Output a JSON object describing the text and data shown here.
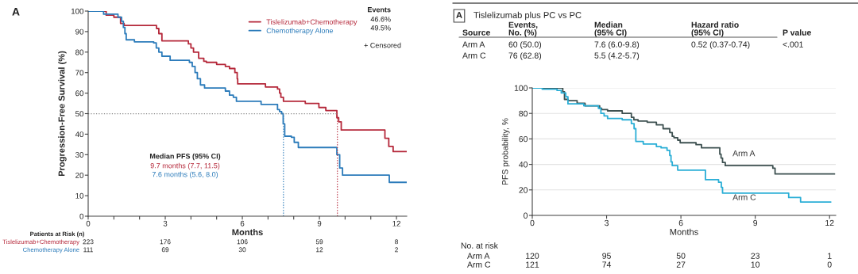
{
  "chart_data": [
    {
      "type": "step",
      "xlabel": "Months",
      "ylabel": "Progression-Free Survival (%)",
      "xlim": [
        0,
        12.4
      ],
      "ylim": [
        0,
        100
      ],
      "xticks": [
        0,
        {
          "value": 1,
          "label": null
        },
        {
          "value": 2,
          "label": null
        },
        3,
        {
          "value": 4,
          "label": null
        },
        {
          "value": 5,
          "label": null
        },
        6,
        {
          "value": 7,
          "label": null
        },
        {
          "value": 8,
          "label": null
        },
        9,
        {
          "value": 10,
          "label": null
        },
        {
          "value": 11,
          "label": null
        },
        12
      ],
      "yticks": [
        0,
        10,
        20,
        30,
        40,
        50,
        60,
        70,
        80,
        90,
        100
      ],
      "legend": "top right",
      "line_style": "solid",
      "series": [
        {
          "name": "Tislelizumab+Chemotherapy",
          "color": "#b5283a",
          "x": [
            0,
            0.7,
            1.0,
            1.26,
            1.4,
            2.66,
            2.75,
            2.87,
            3.9,
            4.0,
            4.1,
            4.3,
            4.5,
            4.6,
            5.0,
            5.34,
            5.5,
            5.71,
            5.8,
            5.82,
            6.9,
            7.37,
            7.45,
            7.5,
            7.6,
            8.45,
            8.98,
            9.25,
            9.68,
            9.75,
            9.85,
            11.55,
            11.7,
            11.87,
            12.4
          ],
          "values": [
            100,
            98,
            97,
            94,
            93,
            91.5,
            89,
            85.5,
            84,
            82,
            80,
            77,
            75.5,
            75,
            74,
            73,
            72,
            70,
            67,
            64.5,
            63,
            62,
            60,
            58,
            56,
            55,
            53,
            51.5,
            48,
            46,
            42,
            38,
            34,
            31.5,
            31.5
          ]
        },
        {
          "name": "Chemotherapy Alone",
          "color": "#2b7bba",
          "x": [
            0,
            0.6,
            1.16,
            1.3,
            1.37,
            1.43,
            1.48,
            1.8,
            2.55,
            2.65,
            2.75,
            2.87,
            3.19,
            3.94,
            4.05,
            4.16,
            4.25,
            4.37,
            4.53,
            5.34,
            5.5,
            5.65,
            5.77,
            6.73,
            7.37,
            7.45,
            7.53,
            7.59,
            7.65,
            7.91,
            8.02,
            8.18,
            9.68,
            9.79,
            9.9,
            11.72,
            12.4
          ],
          "values": [
            100,
            98.5,
            97,
            95,
            92,
            89,
            86,
            85,
            84.5,
            82,
            80,
            78,
            76,
            75,
            73,
            70,
            67,
            64,
            62.5,
            61,
            59,
            58,
            56,
            54.5,
            52,
            51,
            50,
            45,
            39,
            38.5,
            36,
            33.5,
            30,
            23.5,
            20,
            16.5,
            16.5
          ]
        }
      ],
      "ref_lines": [
        {
          "axis": "y",
          "value": 50,
          "color": "#888888",
          "line_style": "dotted"
        },
        {
          "axis": "x",
          "value": 7.6,
          "color": "#2b7bba",
          "line_style": "dotted"
        },
        {
          "axis": "x",
          "value": 9.7,
          "color": "#b5283a",
          "line_style": "dotted"
        }
      ],
      "annotations": [
        "A",
        "Events",
        "46.6%",
        "49.5%",
        "+ Censored",
        "Median PFS (95% CI)",
        "9.7 months (7.7, 11.5)",
        "7.6 months (5.6, 8.0)",
        "Patients at Risk (n)",
        "Tislelizumab+Chemotherapy",
        "Chemotherapy Alone",
        "223",
        "176",
        "106",
        "59",
        "8",
        "111",
        "69",
        "30",
        "12",
        "2"
      ]
    },
    {
      "type": "step",
      "title": "Tislelizumab plus PC vs PC",
      "xlabel": "Months",
      "ylabel": "PFS probability, %",
      "xlim": [
        0,
        12.25
      ],
      "ylim": [
        0,
        100
      ],
      "xticks": [
        0,
        3,
        6,
        9,
        12
      ],
      "yticks": [
        0,
        20,
        40,
        60,
        80,
        100
      ],
      "grid": "y",
      "line_style": "solid",
      "series": [
        {
          "name": "Arm A",
          "color": "#3d5050",
          "x": [
            0,
            1.23,
            1.3,
            1.44,
            1.81,
            2.13,
            2.72,
            2.8,
            3.04,
            3.63,
            4.0,
            4.1,
            4.27,
            4.64,
            5.01,
            5.28,
            5.55,
            5.65,
            5.72,
            5.87,
            5.97,
            6.61,
            6.83,
            7.57,
            7.62,
            7.68,
            7.79,
            9.71,
            9.8,
            10.4,
            12.2
          ],
          "values": [
            100,
            97,
            91,
            90,
            88,
            86,
            84,
            83,
            82,
            80,
            77,
            75,
            74,
            73,
            71,
            68,
            65,
            62,
            61,
            59,
            57,
            55.5,
            53,
            48,
            45,
            41.5,
            39,
            37,
            32.5,
            32.5,
            32.5
          ]
        },
        {
          "name": "Arm C",
          "color": "#2aaed6",
          "x": [
            0,
            0.4,
            1.0,
            1.17,
            1.35,
            1.44,
            2.08,
            2.67,
            2.77,
            2.9,
            3.04,
            3.63,
            4.0,
            4.11,
            4.18,
            4.48,
            5.01,
            5.2,
            5.44,
            5.55,
            5.6,
            5.65,
            5.87,
            6.99,
            7.52,
            7.63,
            7.68,
            10.35,
            10.83,
            12.05
          ],
          "values": [
            100,
            99,
            98,
            96,
            93,
            87.5,
            86,
            84,
            80,
            78,
            76,
            75,
            72,
            68,
            58,
            56,
            54,
            53,
            51,
            47,
            42,
            39,
            35.5,
            28,
            26,
            22,
            17.5,
            14,
            10.5,
            10.5
          ]
        }
      ],
      "annotations": [
        "A",
        "Source",
        "Events,\nNo. (%)",
        "Median\n(95% CI)",
        "Hazard ratio\n(95% CI)",
        "P value",
        "Arm A",
        "60 (50.0)",
        "7.6 (6.0-9.8)",
        "0.52 (0.37-0.74)",
        "<.001",
        "Arm C",
        "76 (62.8)",
        "5.5 (4.2-5.7)",
        "No. at risk",
        "Arm A",
        "Arm C",
        "120",
        "95",
        "50",
        "23",
        "1",
        "121",
        "74",
        "27",
        "10",
        "0"
      ]
    }
  ]
}
